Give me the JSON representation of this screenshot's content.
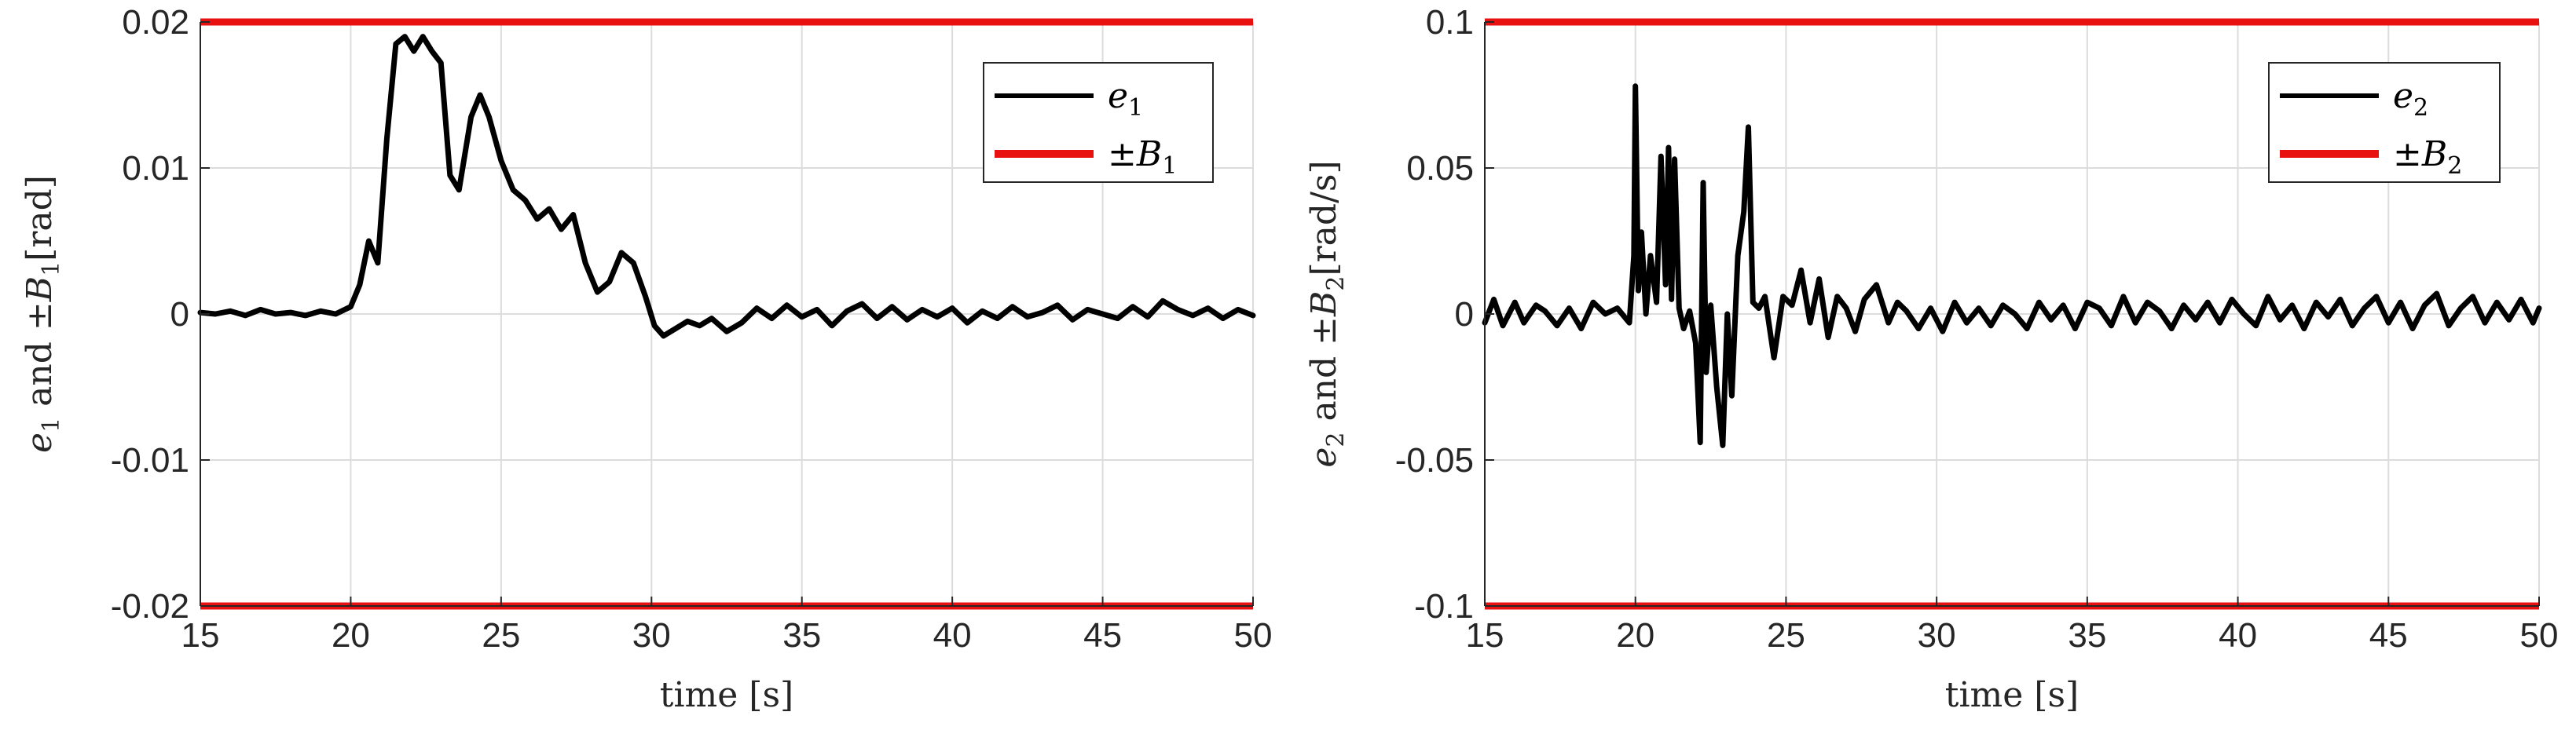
{
  "chart_data": [
    {
      "type": "line",
      "xlabel": "time [s]",
      "ylabel": "e1 and ±B1[rad]",
      "xlim": [
        15,
        50
      ],
      "ylim": [
        -0.02,
        0.02
      ],
      "xticks": [
        "15",
        "20",
        "25",
        "30",
        "35",
        "40",
        "45",
        "50"
      ],
      "yticks": [
        "0.02",
        "0.01",
        "0",
        "-0.01",
        "-0.02"
      ],
      "xtick_values": [
        15,
        20,
        25,
        30,
        35,
        40,
        45,
        50
      ],
      "ytick_values": [
        0.02,
        0.01,
        0,
        -0.01,
        -0.02
      ],
      "grid": true,
      "legend_position": "top-right",
      "series": [
        {
          "name": "e1",
          "color": "#000000",
          "x": [
            15,
            15.5,
            16,
            16.5,
            17,
            17.5,
            18,
            18.5,
            19,
            19.5,
            20,
            20.3,
            20.6,
            20.9,
            21.2,
            21.5,
            21.8,
            22.1,
            22.4,
            22.7,
            23.0,
            23.3,
            23.6,
            24.0,
            24.3,
            24.6,
            25.0,
            25.4,
            25.8,
            26.2,
            26.6,
            27.0,
            27.4,
            27.8,
            28.2,
            28.6,
            29.0,
            29.4,
            29.8,
            30.1,
            30.4,
            30.8,
            31.2,
            31.6,
            32.0,
            32.5,
            33.0,
            33.5,
            34.0,
            34.5,
            35.0,
            35.5,
            36.0,
            36.5,
            37.0,
            37.5,
            38.0,
            38.5,
            39.0,
            39.5,
            40.0,
            40.5,
            41.0,
            41.5,
            42.0,
            42.5,
            43.0,
            43.5,
            44.0,
            44.5,
            45.0,
            45.5,
            46.0,
            46.5,
            47.0,
            47.5,
            48.0,
            48.5,
            49.0,
            49.5,
            50.0
          ],
          "y": [
            0.0001,
            0.0,
            0.0002,
            -0.0001,
            0.0003,
            0.0,
            0.0001,
            -0.0001,
            0.0002,
            0.0,
            0.0005,
            0.002,
            0.005,
            0.0035,
            0.012,
            0.0185,
            0.019,
            0.018,
            0.019,
            0.018,
            0.0172,
            0.0095,
            0.0085,
            0.0135,
            0.015,
            0.0135,
            0.0105,
            0.0085,
            0.0078,
            0.0065,
            0.0072,
            0.0058,
            0.0068,
            0.0035,
            0.0015,
            0.0022,
            0.0042,
            0.0035,
            0.0012,
            -0.0008,
            -0.0015,
            -0.001,
            -0.0005,
            -0.0008,
            -0.0003,
            -0.0012,
            -0.0006,
            0.0004,
            -0.0003,
            0.0006,
            -0.0002,
            0.0003,
            -0.0008,
            0.0002,
            0.0007,
            -0.0003,
            0.0005,
            -0.0004,
            0.0003,
            -0.0002,
            0.0004,
            -0.0006,
            0.0002,
            -0.0003,
            0.0005,
            -0.0002,
            0.0001,
            0.0006,
            -0.0004,
            0.0003,
            0.0,
            -0.0003,
            0.0005,
            -0.0002,
            0.0009,
            0.0003,
            -0.0001,
            0.0004,
            -0.0003,
            0.0003,
            -0.0001
          ]
        },
        {
          "name": "±B1",
          "color": "#e8110f",
          "bound": 0.02
        }
      ],
      "legend": [
        {
          "label": "e1",
          "color": "#000000"
        },
        {
          "label": "±B1",
          "color": "#e8110f"
        }
      ]
    },
    {
      "type": "line",
      "xlabel": "time [s]",
      "ylabel": "e2 and ±B2[rad/s]",
      "xlim": [
        15,
        50
      ],
      "ylim": [
        -0.1,
        0.1
      ],
      "xticks": [
        "15",
        "20",
        "25",
        "30",
        "35",
        "40",
        "45",
        "50"
      ],
      "yticks": [
        "0.1",
        "0.05",
        "0",
        "-0.05",
        "-0.1"
      ],
      "xtick_values": [
        15,
        20,
        25,
        30,
        35,
        40,
        45,
        50
      ],
      "ytick_values": [
        0.1,
        0.05,
        0,
        -0.05,
        -0.1
      ],
      "grid": true,
      "legend_position": "top-right",
      "series": [
        {
          "name": "e2",
          "color": "#000000",
          "x": [
            15,
            15.3,
            15.6,
            16.0,
            16.3,
            16.7,
            17.0,
            17.4,
            17.8,
            18.2,
            18.6,
            19.0,
            19.4,
            19.8,
            19.95,
            20.0,
            20.1,
            20.2,
            20.35,
            20.5,
            20.7,
            20.85,
            21.0,
            21.1,
            21.2,
            21.3,
            21.45,
            21.6,
            21.8,
            22.0,
            22.15,
            22.25,
            22.35,
            22.5,
            22.7,
            22.9,
            23.05,
            23.2,
            23.4,
            23.6,
            23.75,
            23.9,
            24.1,
            24.3,
            24.6,
            24.9,
            25.2,
            25.5,
            25.8,
            26.1,
            26.4,
            26.7,
            27.0,
            27.3,
            27.6,
            28.0,
            28.4,
            28.7,
            29.0,
            29.4,
            29.8,
            30.2,
            30.6,
            31.0,
            31.4,
            31.8,
            32.2,
            32.6,
            33.0,
            33.4,
            33.8,
            34.2,
            34.6,
            35.0,
            35.4,
            35.8,
            36.2,
            36.6,
            37.0,
            37.4,
            37.8,
            38.2,
            38.6,
            39.0,
            39.4,
            39.8,
            40.2,
            40.6,
            41.0,
            41.4,
            41.8,
            42.2,
            42.6,
            43.0,
            43.4,
            43.8,
            44.2,
            44.6,
            45.0,
            45.4,
            45.8,
            46.2,
            46.6,
            47.0,
            47.4,
            47.8,
            48.2,
            48.6,
            49.0,
            49.4,
            49.8,
            50.0
          ],
          "y": [
            -0.003,
            0.005,
            -0.004,
            0.004,
            -0.003,
            0.003,
            0.001,
            -0.004,
            0.002,
            -0.005,
            0.004,
            0.0,
            0.002,
            -0.003,
            0.02,
            0.078,
            0.008,
            0.028,
            0.0,
            0.02,
            0.004,
            0.054,
            0.01,
            0.057,
            0.005,
            0.053,
            0.002,
            -0.005,
            0.001,
            -0.01,
            -0.044,
            0.045,
            -0.02,
            0.003,
            -0.025,
            -0.045,
            0.0,
            -0.028,
            0.02,
            0.035,
            0.064,
            0.004,
            0.002,
            0.006,
            -0.015,
            0.006,
            0.003,
            0.015,
            -0.003,
            0.012,
            -0.008,
            0.006,
            0.002,
            -0.006,
            0.005,
            0.01,
            -0.003,
            0.004,
            0.001,
            -0.005,
            0.002,
            -0.006,
            0.004,
            -0.003,
            0.002,
            -0.004,
            0.003,
            0.0,
            -0.005,
            0.004,
            -0.002,
            0.003,
            -0.005,
            0.004,
            0.002,
            -0.004,
            0.006,
            -0.003,
            0.004,
            0.001,
            -0.005,
            0.003,
            -0.002,
            0.004,
            -0.003,
            0.005,
            0.0,
            -0.004,
            0.006,
            -0.002,
            0.003,
            -0.005,
            0.004,
            -0.001,
            0.005,
            -0.004,
            0.002,
            0.006,
            -0.003,
            0.004,
            -0.005,
            0.003,
            0.007,
            -0.004,
            0.002,
            0.006,
            -0.003,
            0.004,
            -0.002,
            0.005,
            -0.003,
            0.002
          ]
        },
        {
          "name": "±B2",
          "color": "#e8110f",
          "bound": 0.1
        }
      ],
      "legend": [
        {
          "label": "e2",
          "color": "#000000"
        },
        {
          "label": "±B2",
          "color": "#e8110f"
        }
      ]
    }
  ]
}
